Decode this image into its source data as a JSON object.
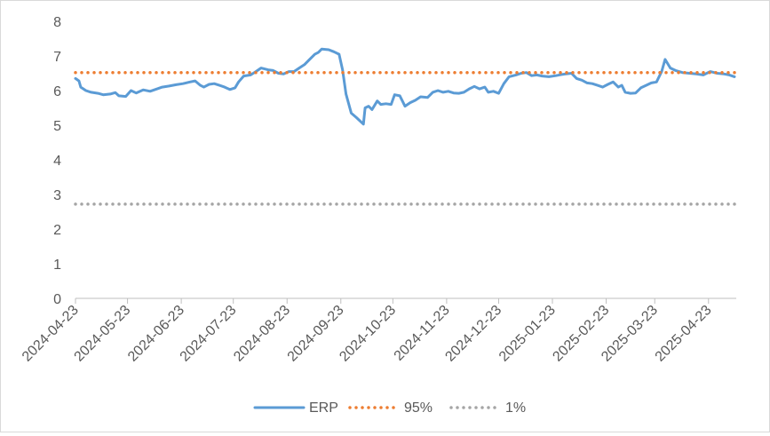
{
  "chart_data": {
    "type": "line",
    "title": "",
    "xlabel": "",
    "ylabel": "",
    "ylim": [
      0,
      8
    ],
    "yticks": [
      "0",
      "1",
      "2",
      "3",
      "4",
      "5",
      "6",
      "7",
      "8"
    ],
    "xlim": [
      "2024-04-23",
      "2025-05-09"
    ],
    "xticks": [
      "2024-04-23",
      "2024-05-23",
      "2024-06-23",
      "2024-07-23",
      "2024-08-23",
      "2024-09-23",
      "2024-10-23",
      "2024-11-23",
      "2024-12-23",
      "2025-01-23",
      "2025-02-23",
      "2025-03-23",
      "2025-04-23"
    ],
    "grid": false,
    "legend_position": "bottom",
    "colors": {
      "ERP": "#5b9bd5",
      "95%": "#ed7d31",
      "1%": "#a5a5a5"
    },
    "series": [
      {
        "name": "ERP",
        "style": "solid",
        "points": [
          [
            "2024-04-23",
            6.35
          ],
          [
            "2024-04-25",
            6.28
          ],
          [
            "2024-04-26",
            6.1
          ],
          [
            "2024-04-29",
            6.0
          ],
          [
            "2024-05-02",
            5.95
          ],
          [
            "2024-05-06",
            5.92
          ],
          [
            "2024-05-09",
            5.88
          ],
          [
            "2024-05-13",
            5.9
          ],
          [
            "2024-05-16",
            5.94
          ],
          [
            "2024-05-18",
            5.85
          ],
          [
            "2024-05-22",
            5.83
          ],
          [
            "2024-05-25",
            6.0
          ],
          [
            "2024-05-28",
            5.93
          ],
          [
            "2024-06-01",
            6.02
          ],
          [
            "2024-06-05",
            5.98
          ],
          [
            "2024-06-08",
            6.03
          ],
          [
            "2024-06-12",
            6.1
          ],
          [
            "2024-06-16",
            6.13
          ],
          [
            "2024-06-20",
            6.17
          ],
          [
            "2024-06-24",
            6.2
          ],
          [
            "2024-06-28",
            6.25
          ],
          [
            "2024-07-01",
            6.28
          ],
          [
            "2024-07-04",
            6.15
          ],
          [
            "2024-07-06",
            6.1
          ],
          [
            "2024-07-09",
            6.18
          ],
          [
            "2024-07-12",
            6.2
          ],
          [
            "2024-07-15",
            6.15
          ],
          [
            "2024-07-18",
            6.1
          ],
          [
            "2024-07-21",
            6.03
          ],
          [
            "2024-07-24",
            6.08
          ],
          [
            "2024-07-26",
            6.25
          ],
          [
            "2024-07-29",
            6.42
          ],
          [
            "2024-08-02",
            6.45
          ],
          [
            "2024-08-05",
            6.55
          ],
          [
            "2024-08-08",
            6.65
          ],
          [
            "2024-08-12",
            6.6
          ],
          [
            "2024-08-15",
            6.58
          ],
          [
            "2024-08-18",
            6.5
          ],
          [
            "2024-08-21",
            6.48
          ],
          [
            "2024-08-24",
            6.55
          ],
          [
            "2024-08-27",
            6.55
          ],
          [
            "2024-08-30",
            6.65
          ],
          [
            "2024-09-02",
            6.75
          ],
          [
            "2024-09-05",
            6.9
          ],
          [
            "2024-09-08",
            7.05
          ],
          [
            "2024-09-10",
            7.1
          ],
          [
            "2024-09-12",
            7.2
          ],
          [
            "2024-09-16",
            7.18
          ],
          [
            "2024-09-19",
            7.12
          ],
          [
            "2024-09-22",
            7.05
          ],
          [
            "2024-09-24",
            6.6
          ],
          [
            "2024-09-26",
            5.9
          ],
          [
            "2024-09-29",
            5.35
          ],
          [
            "2024-10-02",
            5.22
          ],
          [
            "2024-10-06",
            5.03
          ],
          [
            "2024-10-07",
            5.5
          ],
          [
            "2024-10-09",
            5.55
          ],
          [
            "2024-10-11",
            5.45
          ],
          [
            "2024-10-14",
            5.7
          ],
          [
            "2024-10-16",
            5.6
          ],
          [
            "2024-10-19",
            5.62
          ],
          [
            "2024-10-22",
            5.6
          ],
          [
            "2024-10-24",
            5.88
          ],
          [
            "2024-10-27",
            5.85
          ],
          [
            "2024-10-30",
            5.55
          ],
          [
            "2024-11-02",
            5.65
          ],
          [
            "2024-11-05",
            5.72
          ],
          [
            "2024-11-08",
            5.82
          ],
          [
            "2024-11-12",
            5.8
          ],
          [
            "2024-11-15",
            5.95
          ],
          [
            "2024-11-18",
            6.0
          ],
          [
            "2024-11-21",
            5.95
          ],
          [
            "2024-11-24",
            5.98
          ],
          [
            "2024-11-27",
            5.93
          ],
          [
            "2024-11-30",
            5.92
          ],
          [
            "2024-12-03",
            5.95
          ],
          [
            "2024-12-06",
            6.05
          ],
          [
            "2024-12-09",
            6.12
          ],
          [
            "2024-12-12",
            6.05
          ],
          [
            "2024-12-15",
            6.1
          ],
          [
            "2024-12-17",
            5.95
          ],
          [
            "2024-12-20",
            5.98
          ],
          [
            "2024-12-23",
            5.92
          ],
          [
            "2024-12-26",
            6.2
          ],
          [
            "2024-12-29",
            6.4
          ],
          [
            "2025-01-02",
            6.45
          ],
          [
            "2025-01-05",
            6.5
          ],
          [
            "2025-01-08",
            6.52
          ],
          [
            "2025-01-11",
            6.43
          ],
          [
            "2025-01-14",
            6.45
          ],
          [
            "2025-01-17",
            6.42
          ],
          [
            "2025-01-21",
            6.4
          ],
          [
            "2025-01-25",
            6.43
          ],
          [
            "2025-01-29",
            6.47
          ],
          [
            "2025-02-03",
            6.5
          ],
          [
            "2025-02-06",
            6.35
          ],
          [
            "2025-02-09",
            6.3
          ],
          [
            "2025-02-12",
            6.22
          ],
          [
            "2025-02-15",
            6.2
          ],
          [
            "2025-02-18",
            6.15
          ],
          [
            "2025-02-21",
            6.1
          ],
          [
            "2025-02-24",
            6.18
          ],
          [
            "2025-02-27",
            6.25
          ],
          [
            "2025-03-02",
            6.1
          ],
          [
            "2025-03-04",
            6.15
          ],
          [
            "2025-03-06",
            5.95
          ],
          [
            "2025-03-09",
            5.92
          ],
          [
            "2025-03-12",
            5.93
          ],
          [
            "2025-03-15",
            6.08
          ],
          [
            "2025-03-18",
            6.15
          ],
          [
            "2025-03-21",
            6.22
          ],
          [
            "2025-03-24",
            6.25
          ],
          [
            "2025-03-27",
            6.55
          ],
          [
            "2025-03-29",
            6.9
          ],
          [
            "2025-04-01",
            6.65
          ],
          [
            "2025-04-04",
            6.58
          ],
          [
            "2025-04-08",
            6.52
          ],
          [
            "2025-04-12",
            6.5
          ],
          [
            "2025-04-16",
            6.48
          ],
          [
            "2025-04-20",
            6.45
          ],
          [
            "2025-04-24",
            6.55
          ],
          [
            "2025-04-28",
            6.5
          ],
          [
            "2025-05-02",
            6.48
          ],
          [
            "2025-05-05",
            6.45
          ],
          [
            "2025-05-08",
            6.4
          ]
        ]
      },
      {
        "name": "95%",
        "style": "dotted",
        "value": 6.52
      },
      {
        "name": "1%",
        "style": "dotted",
        "value": 2.72
      }
    ]
  }
}
